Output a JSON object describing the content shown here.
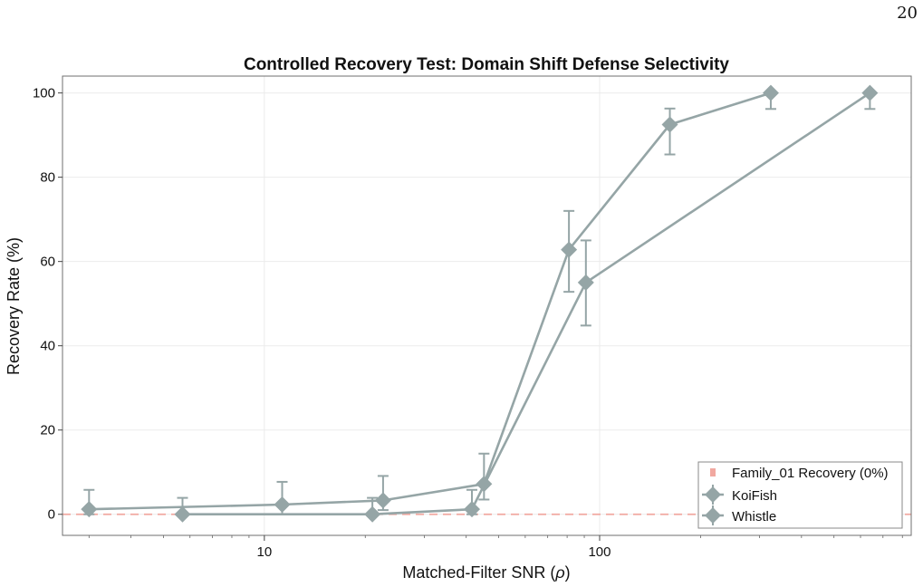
{
  "page": {
    "number": "20"
  },
  "chart_data": {
    "type": "line",
    "title": "Controlled Recovery Test: Domain Shift Defense Selectivity",
    "xlabel": "Matched-Filter SNR (ρ)",
    "ylabel": "Recovery Rate (%)",
    "xscale": "log",
    "xlim": [
      2.5,
      850
    ],
    "ylim": [
      -5,
      104
    ],
    "x_tick_labels": [
      "10",
      "100"
    ],
    "x_ticks": [
      10,
      100
    ],
    "y_ticks": [
      0,
      20,
      40,
      60,
      80,
      100
    ],
    "y_tick_labels": [
      "0",
      "20",
      "40",
      "60",
      "80",
      "100"
    ],
    "grid": true,
    "legend_position": "bottom-right",
    "series": [
      {
        "name": "KoiFish",
        "color": "#95a5a6",
        "marker": "diamond",
        "points": [
          {
            "x": 3.0,
            "y": 1.2,
            "err_low": 1.2,
            "err_high": 4.6
          },
          {
            "x": 11.3,
            "y": 2.3,
            "err_low": 2.3,
            "err_high": 5.4
          },
          {
            "x": 22.6,
            "y": 3.3,
            "err_low": 2.3,
            "err_high": 5.8
          },
          {
            "x": 45.2,
            "y": 7.2,
            "err_low": 3.7,
            "err_high": 7.2
          },
          {
            "x": 81,
            "y": 62.8,
            "err_low": 10.0,
            "err_high": 9.2
          },
          {
            "x": 162,
            "y": 92.5,
            "err_low": 7.1,
            "err_high": 3.8
          },
          {
            "x": 324,
            "y": 100,
            "err_low": 3.8,
            "err_high": 0
          }
        ]
      },
      {
        "name": "Whistle",
        "color": "#95a5a6",
        "marker": "diamond",
        "points": [
          {
            "x": 5.7,
            "y": 0,
            "err_low": 0,
            "err_high": 3.9
          },
          {
            "x": 21.0,
            "y": 0,
            "err_low": 0,
            "err_high": 3.9
          },
          {
            "x": 41.6,
            "y": 1.2,
            "err_low": 1.2,
            "err_high": 4.6
          },
          {
            "x": 91,
            "y": 55,
            "err_low": 10.2,
            "err_high": 10.0
          },
          {
            "x": 640,
            "y": 100,
            "err_low": 3.8,
            "err_high": 0
          }
        ]
      }
    ],
    "reference_line": {
      "name": "Family_01 Recovery (0%)",
      "y": 0,
      "color": "#f1a8a0",
      "style": "dashed"
    }
  },
  "legend": {
    "items": [
      {
        "label": "Family_01 Recovery (0%)"
      },
      {
        "label": "KoiFish"
      },
      {
        "label": "Whistle"
      }
    ]
  }
}
